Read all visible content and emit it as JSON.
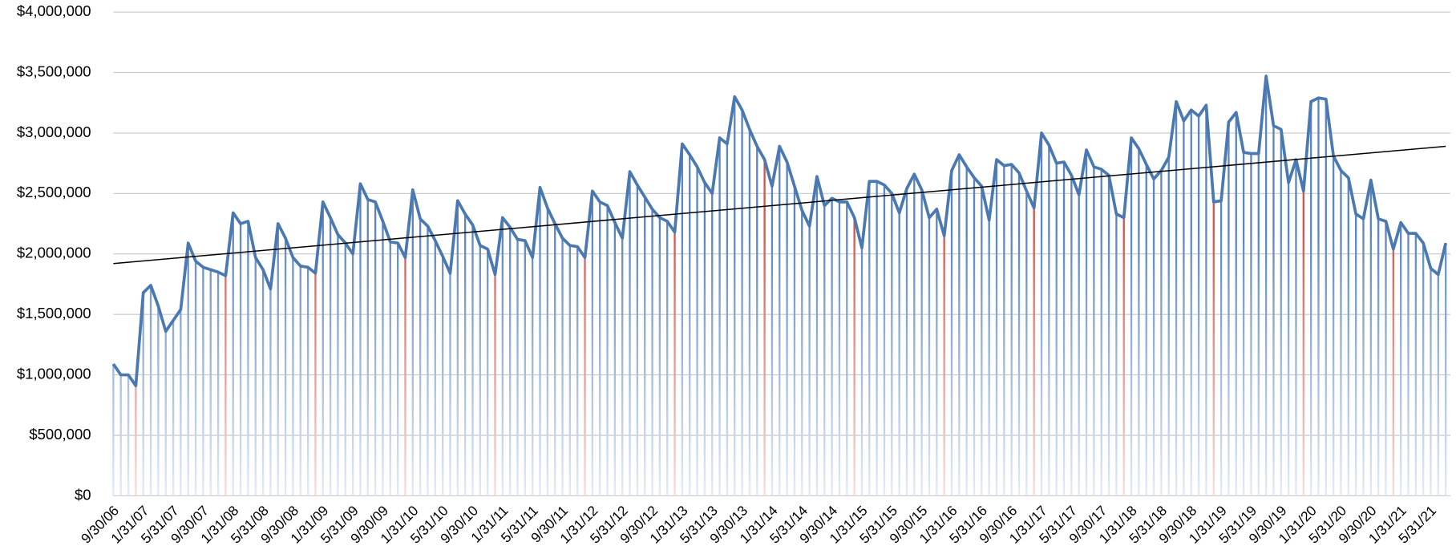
{
  "chart_data": {
    "type": "line",
    "categories": [
      "9/30/06",
      null,
      null,
      null,
      "1/31/07",
      null,
      null,
      null,
      "5/31/07",
      null,
      null,
      null,
      "9/30/07",
      null,
      null,
      null,
      "1/31/08",
      null,
      null,
      null,
      "5/31/08",
      null,
      null,
      null,
      "9/30/08",
      null,
      null,
      null,
      "1/31/09",
      null,
      null,
      null,
      "5/31/09",
      null,
      null,
      null,
      "9/30/09",
      null,
      null,
      null,
      "1/31/10",
      null,
      null,
      null,
      "5/31/10",
      null,
      null,
      null,
      "9/30/10",
      null,
      null,
      null,
      "1/31/11",
      null,
      null,
      null,
      "5/31/11",
      null,
      null,
      null,
      "9/30/11",
      null,
      null,
      null,
      "1/31/12",
      null,
      null,
      null,
      "5/31/12",
      null,
      null,
      null,
      "9/30/12",
      null,
      null,
      null,
      "1/31/13",
      null,
      null,
      null,
      "5/31/13",
      null,
      null,
      null,
      "9/30/13",
      null,
      null,
      null,
      "1/31/14",
      null,
      null,
      null,
      "5/31/14",
      null,
      null,
      null,
      "9/30/14",
      null,
      null,
      null,
      "1/31/15",
      null,
      null,
      null,
      "5/31/15",
      null,
      null,
      null,
      "9/30/15",
      null,
      null,
      null,
      "1/31/16",
      null,
      null,
      null,
      "5/31/16",
      null,
      null,
      null,
      "9/30/16",
      null,
      null,
      null,
      "1/31/17",
      null,
      null,
      null,
      "5/31/17",
      null,
      null,
      null,
      "9/30/17",
      null,
      null,
      null,
      "1/31/18",
      null,
      null,
      null,
      "5/31/18",
      null,
      null,
      null,
      "9/30/18",
      null,
      null,
      null,
      "1/31/19",
      null,
      null,
      null,
      "5/31/19",
      null,
      null,
      null,
      "9/30/19",
      null,
      null,
      null,
      "1/31/20",
      null,
      null,
      null,
      "5/31/20",
      null,
      null,
      null,
      "9/30/20",
      null,
      null,
      null,
      "1/31/21",
      null,
      null,
      null,
      "5/31/21",
      null,
      null
    ],
    "values": [
      1090000,
      1000000,
      1000000,
      910000,
      1680000,
      1740000,
      1570000,
      1360000,
      1450000,
      1540000,
      2090000,
      1940000,
      1890000,
      1870000,
      1850000,
      1820000,
      2340000,
      2250000,
      2270000,
      1970000,
      1870000,
      1710000,
      2250000,
      2130000,
      1970000,
      1900000,
      1890000,
      1840000,
      2430000,
      2300000,
      2160000,
      2090000,
      2000000,
      2580000,
      2450000,
      2430000,
      2270000,
      2100000,
      2090000,
      1970000,
      2530000,
      2290000,
      2230000,
      2110000,
      1980000,
      1840000,
      2440000,
      2330000,
      2240000,
      2070000,
      2040000,
      1830000,
      2300000,
      2220000,
      2120000,
      2110000,
      1970000,
      2550000,
      2380000,
      2250000,
      2130000,
      2070000,
      2060000,
      1970000,
      2520000,
      2430000,
      2400000,
      2260000,
      2130000,
      2680000,
      2570000,
      2470000,
      2370000,
      2300000,
      2270000,
      2180000,
      2910000,
      2820000,
      2720000,
      2590000,
      2500000,
      2960000,
      2910000,
      3300000,
      3190000,
      3030000,
      2890000,
      2780000,
      2560000,
      2890000,
      2760000,
      2560000,
      2360000,
      2230000,
      2640000,
      2400000,
      2460000,
      2430000,
      2430000,
      2300000,
      2050000,
      2600000,
      2600000,
      2570000,
      2500000,
      2340000,
      2540000,
      2660000,
      2530000,
      2300000,
      2370000,
      2150000,
      2690000,
      2820000,
      2720000,
      2630000,
      2560000,
      2280000,
      2780000,
      2730000,
      2740000,
      2670000,
      2520000,
      2380000,
      3000000,
      2900000,
      2750000,
      2760000,
      2650000,
      2490000,
      2860000,
      2720000,
      2700000,
      2650000,
      2330000,
      2300000,
      2960000,
      2870000,
      2740000,
      2620000,
      2690000,
      2800000,
      3260000,
      3100000,
      3190000,
      3140000,
      3230000,
      2430000,
      2440000,
      3090000,
      3170000,
      2840000,
      2830000,
      2830000,
      3470000,
      3060000,
      3030000,
      2590000,
      2780000,
      2520000,
      3260000,
      3290000,
      3280000,
      2810000,
      2690000,
      2630000,
      2330000,
      2290000,
      2610000,
      2290000,
      2270000,
      2040000,
      2260000,
      2170000,
      2170000,
      2090000,
      1880000,
      1830000,
      2090000
    ],
    "color": "#4a78b0",
    "drop_line_color": "#5a86bf",
    "highlight_color": "#c65a52",
    "highlight_indices": [
      3,
      15,
      27,
      39,
      51,
      63,
      75,
      87,
      99,
      111,
      123,
      135,
      147,
      159,
      171
    ],
    "trendline": {
      "values": [
        1920000,
        2890000
      ],
      "color": "#000000"
    },
    "ylim": [
      0,
      4000000
    ],
    "yticks": [
      {
        "value": 0,
        "label": "$0"
      },
      {
        "value": 500000,
        "label": "$500,000"
      },
      {
        "value": 1000000,
        "label": "$1,000,000"
      },
      {
        "value": 1500000,
        "label": "$1,500,000"
      },
      {
        "value": 2000000,
        "label": "$2,000,000"
      },
      {
        "value": 2500000,
        "label": "$2,500,000"
      },
      {
        "value": 3000000,
        "label": "$3,000,000"
      },
      {
        "value": 3500000,
        "label": "$3,500,000"
      },
      {
        "value": 4000000,
        "label": "$4,000,000"
      }
    ],
    "grid": true
  }
}
